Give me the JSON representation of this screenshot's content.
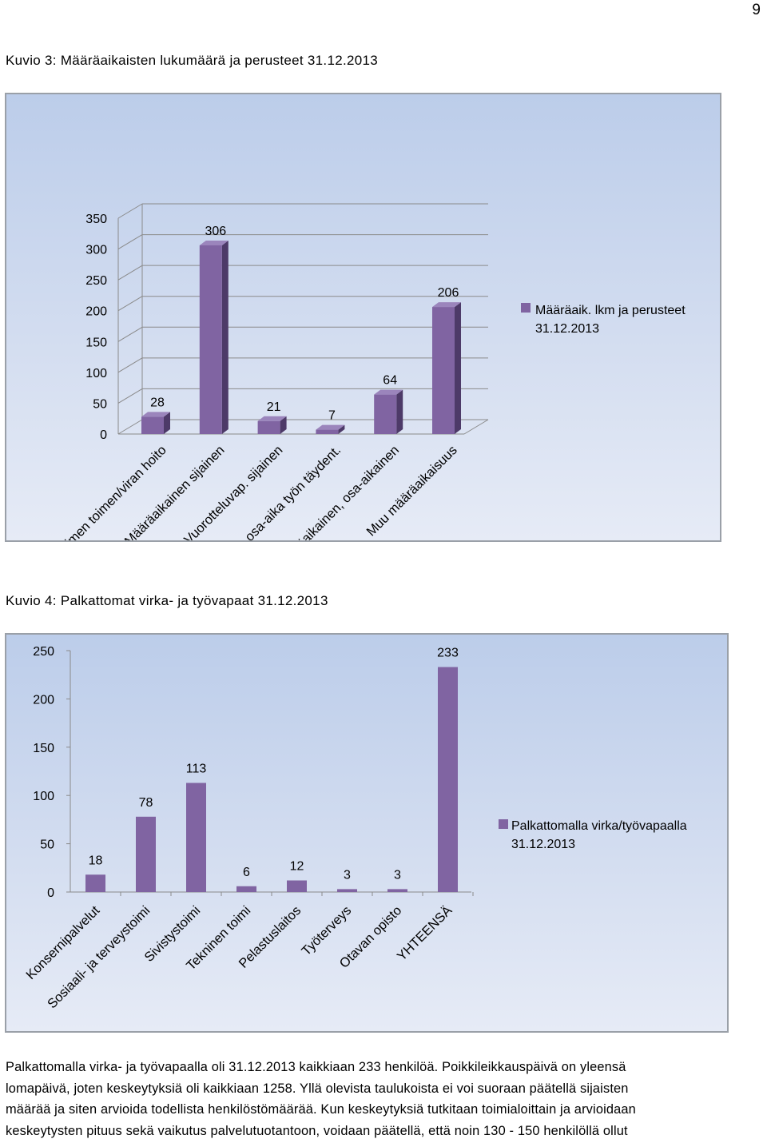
{
  "page_number": "9",
  "figure3": {
    "caption": "Kuvio 3: Määräaikaisten lukumäärä ja perusteet 31.12.2013",
    "legend_line1": "Määräaik. lkm ja perusteet",
    "legend_line2": "31.12.2013",
    "legend_color": "#8064a2"
  },
  "figure4": {
    "caption": "Kuvio 4: Palkattomat virka- ja työvapaat 31.12.2013",
    "legend_line1": "Palkattomalla virka/työvapaalla",
    "legend_line2": "31.12.2013",
    "legend_color": "#8064a2"
  },
  "chart_data": [
    {
      "type": "bar",
      "title": "Kuvio 3: Määräaikaisten lukumäärä ja perusteet 31.12.2013",
      "categories": [
        "Avoimen toimen/viran hoito",
        "Määräaikainen sijainen",
        "Vuorotteluvap. sijainen",
        "Väliaikainen, osa-aika työn täydent.",
        "Määräaikainen, osa-aikainen",
        "Muu määräaikaisuus"
      ],
      "series": [
        {
          "name": "Määräaik. lkm ja perusteet 31.12.2013",
          "values": [
            28,
            306,
            21,
            7,
            64,
            206
          ]
        }
      ],
      "yticks": [
        "0",
        "50",
        "100",
        "150",
        "200",
        "250",
        "300",
        "350"
      ],
      "ylim": [
        0,
        350
      ],
      "legend": "right",
      "style": "3d"
    },
    {
      "type": "bar",
      "title": "Kuvio 4: Palkattomat virka- ja työvapaat 31.12.2013",
      "categories": [
        "Konsernipalvelut",
        "Sosiaali- ja terveystoimi",
        "Sivistystoimi",
        "Tekninen toimi",
        "Pelastuslaitos",
        "Työterveys",
        "Otavan opisto",
        "YHTEENSÄ"
      ],
      "series": [
        {
          "name": "Palkattomalla virka/työvapaalla 31.12.2013",
          "values": [
            18,
            78,
            113,
            6,
            12,
            3,
            3,
            233
          ]
        }
      ],
      "yticks": [
        "0",
        "50",
        "100",
        "150",
        "200",
        "250"
      ],
      "ylim": [
        0,
        250
      ],
      "legend": "right"
    }
  ],
  "body_text": [
    "Palkattomalla virka- ja työvapaalla oli 31.12.2013 kaikkiaan 233 henkilöä. Poikkileikkauspäivä on yleensä",
    "lomapäivä, joten keskeytyksiä oli kaikkiaan 1258. Yllä olevista taulukoista ei voi suoraan päätellä sijaisten",
    "määrää ja siten arvioida todellista henkilöstömäärää. Kun keskeytyksiä tutkitaan toimialoittain ja arvioidaan",
    "keskeytysten pituus sekä vaikutus palvelutuotantoon, voidaan päätellä, että noin 130 - 150 henkilöllä ollut"
  ]
}
